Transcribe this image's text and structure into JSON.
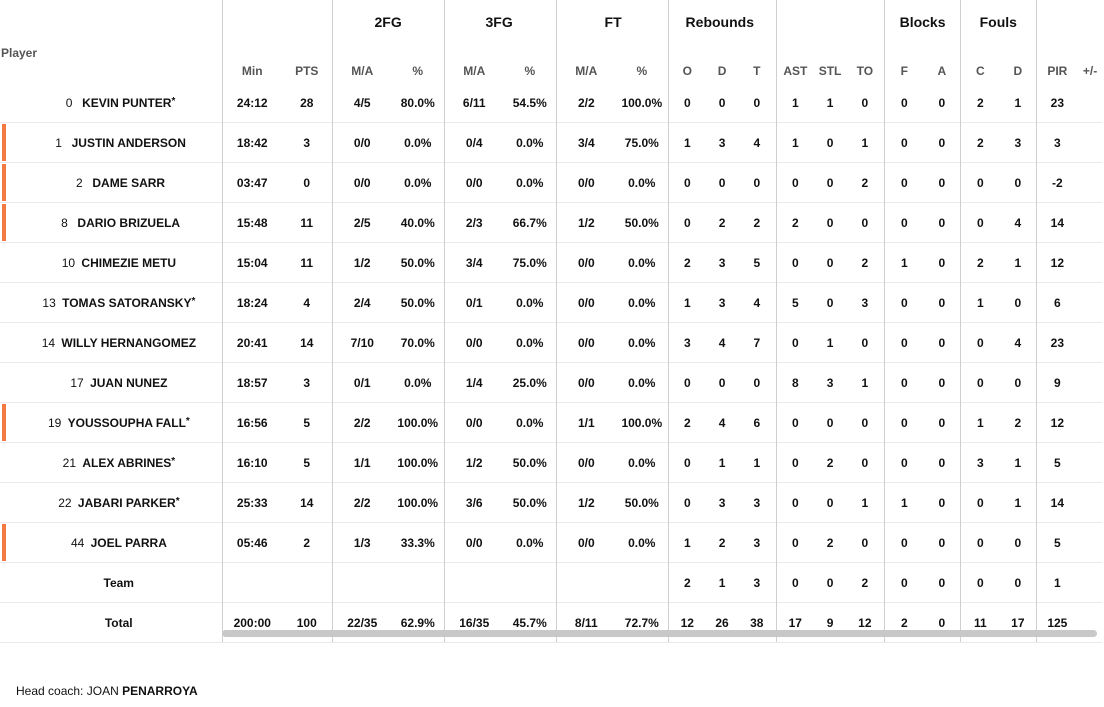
{
  "headers": {
    "player": "Player",
    "groups": {
      "fg2": "2FG",
      "fg3": "3FG",
      "ft": "FT",
      "rebounds": "Rebounds",
      "blocks": "Blocks",
      "fouls": "Fouls"
    },
    "cols": [
      "Min",
      "PTS",
      "M/A",
      "%",
      "M/A",
      "%",
      "M/A",
      "%",
      "O",
      "D",
      "T",
      "AST",
      "STL",
      "TO",
      "F",
      "A",
      "C",
      "D",
      "PIR",
      "+/-"
    ]
  },
  "players": [
    {
      "num": "0",
      "first": "KEVIN",
      "last": "PUNTER",
      "star": "*",
      "mark": false,
      "stats": [
        "24:12",
        "28",
        "4/5",
        "80.0%",
        "6/11",
        "54.5%",
        "2/2",
        "100.0%",
        "0",
        "0",
        "0",
        "1",
        "1",
        "0",
        "0",
        "0",
        "2",
        "1",
        "23",
        ""
      ]
    },
    {
      "num": "1",
      "first": "JUSTIN",
      "last": "ANDERSON",
      "star": "",
      "mark": true,
      "stats": [
        "18:42",
        "3",
        "0/0",
        "0.0%",
        "0/4",
        "0.0%",
        "3/4",
        "75.0%",
        "1",
        "3",
        "4",
        "1",
        "0",
        "1",
        "0",
        "0",
        "2",
        "3",
        "3",
        ""
      ]
    },
    {
      "num": "2",
      "first": "DAME",
      "last": "SARR",
      "star": "",
      "mark": true,
      "stats": [
        "03:47",
        "0",
        "0/0",
        "0.0%",
        "0/0",
        "0.0%",
        "0/0",
        "0.0%",
        "0",
        "0",
        "0",
        "0",
        "0",
        "2",
        "0",
        "0",
        "0",
        "0",
        "-2",
        ""
      ]
    },
    {
      "num": "8",
      "first": "DARIO",
      "last": "BRIZUELA",
      "star": "",
      "mark": true,
      "stats": [
        "15:48",
        "11",
        "2/5",
        "40.0%",
        "2/3",
        "66.7%",
        "1/2",
        "50.0%",
        "0",
        "2",
        "2",
        "2",
        "0",
        "0",
        "0",
        "0",
        "0",
        "4",
        "14",
        ""
      ]
    },
    {
      "num": "10",
      "first": "CHIMEZIE",
      "last": "METU",
      "star": "",
      "mark": false,
      "stats": [
        "15:04",
        "11",
        "1/2",
        "50.0%",
        "3/4",
        "75.0%",
        "0/0",
        "0.0%",
        "2",
        "3",
        "5",
        "0",
        "0",
        "2",
        "1",
        "0",
        "2",
        "1",
        "12",
        ""
      ]
    },
    {
      "num": "13",
      "first": "TOMAS",
      "last": "SATORANSKY",
      "star": "*",
      "mark": false,
      "stats": [
        "18:24",
        "4",
        "2/4",
        "50.0%",
        "0/1",
        "0.0%",
        "0/0",
        "0.0%",
        "1",
        "3",
        "4",
        "5",
        "0",
        "3",
        "0",
        "0",
        "1",
        "0",
        "6",
        ""
      ]
    },
    {
      "num": "14",
      "first": "WILLY",
      "last": "HERNANGOMEZ",
      "star": "",
      "mark": false,
      "stats": [
        "20:41",
        "14",
        "7/10",
        "70.0%",
        "0/0",
        "0.0%",
        "0/0",
        "0.0%",
        "3",
        "4",
        "7",
        "0",
        "1",
        "0",
        "0",
        "0",
        "0",
        "4",
        "23",
        ""
      ]
    },
    {
      "num": "17",
      "first": "JUAN",
      "last": "NUNEZ",
      "star": "",
      "mark": false,
      "stats": [
        "18:57",
        "3",
        "0/1",
        "0.0%",
        "1/4",
        "25.0%",
        "0/0",
        "0.0%",
        "0",
        "0",
        "0",
        "8",
        "3",
        "1",
        "0",
        "0",
        "0",
        "0",
        "9",
        ""
      ]
    },
    {
      "num": "19",
      "first": "YOUSSOUPHA",
      "last": "FALL",
      "star": "*",
      "mark": true,
      "stats": [
        "16:56",
        "5",
        "2/2",
        "100.0%",
        "0/0",
        "0.0%",
        "1/1",
        "100.0%",
        "2",
        "4",
        "6",
        "0",
        "0",
        "0",
        "0",
        "0",
        "1",
        "2",
        "12",
        ""
      ]
    },
    {
      "num": "21",
      "first": "ALEX",
      "last": "ABRINES",
      "star": "*",
      "mark": false,
      "stats": [
        "16:10",
        "5",
        "1/1",
        "100.0%",
        "1/2",
        "50.0%",
        "0/0",
        "0.0%",
        "0",
        "1",
        "1",
        "0",
        "2",
        "0",
        "0",
        "0",
        "3",
        "1",
        "5",
        ""
      ]
    },
    {
      "num": "22",
      "first": "JABARI",
      "last": "PARKER",
      "star": "*",
      "mark": false,
      "stats": [
        "25:33",
        "14",
        "2/2",
        "100.0%",
        "3/6",
        "50.0%",
        "1/2",
        "50.0%",
        "0",
        "3",
        "3",
        "0",
        "0",
        "1",
        "1",
        "0",
        "0",
        "1",
        "14",
        ""
      ]
    },
    {
      "num": "44",
      "first": "JOEL",
      "last": "PARRA",
      "star": "",
      "mark": true,
      "stats": [
        "05:46",
        "2",
        "1/3",
        "33.3%",
        "0/0",
        "0.0%",
        "0/0",
        "0.0%",
        "1",
        "2",
        "3",
        "0",
        "2",
        "0",
        "0",
        "0",
        "0",
        "0",
        "5",
        ""
      ]
    }
  ],
  "team": {
    "label": "Team",
    "stats": [
      "",
      "",
      "",
      "",
      "",
      "",
      "",
      "",
      "2",
      "1",
      "3",
      "0",
      "0",
      "2",
      "0",
      "0",
      "0",
      "0",
      "1",
      ""
    ]
  },
  "total": {
    "label": "Total",
    "stats": [
      "200:00",
      "100",
      "22/35",
      "62.9%",
      "16/35",
      "45.7%",
      "8/11",
      "72.7%",
      "12",
      "26",
      "38",
      "17",
      "9",
      "12",
      "2",
      "0",
      "11",
      "17",
      "125",
      ""
    ]
  },
  "coach": {
    "label": "Head coach:",
    "first": "JOAN",
    "last": "PENARROYA"
  },
  "colors": {
    "accent": "#f37b43"
  }
}
